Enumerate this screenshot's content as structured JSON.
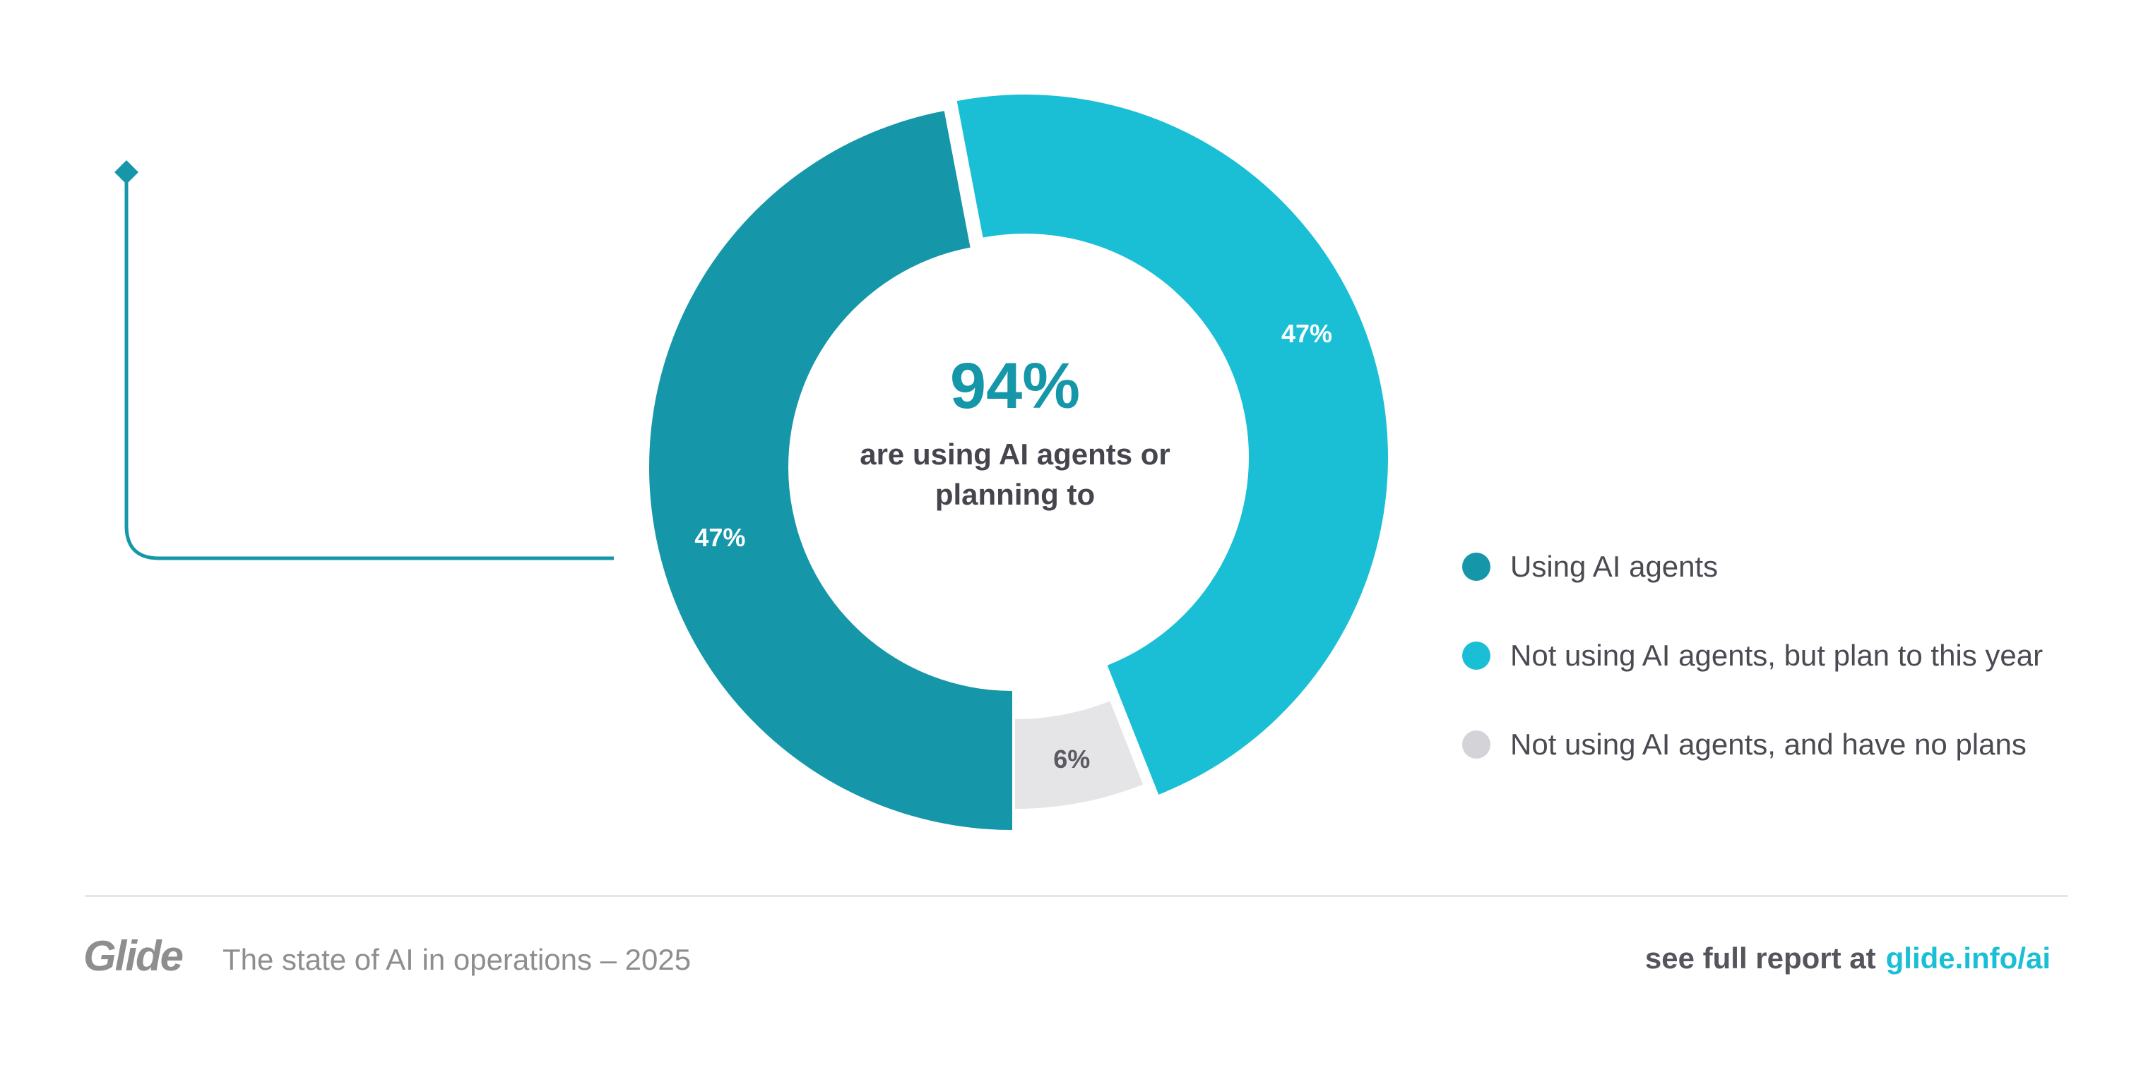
{
  "chart_data": {
    "type": "pie",
    "donut": true,
    "categories": [
      "Using AI agents",
      "Not using AI agents, but plan to this year",
      "Not using AI agents, and have no plans"
    ],
    "values": [
      47,
      47,
      6
    ],
    "data_labels": [
      "47%",
      "47%",
      "6%"
    ],
    "colors": [
      "#1597a9",
      "#1bbfd5",
      "#e5e5e8"
    ],
    "legend_colors": [
      "#1597a9",
      "#1bbfd5",
      "#d4d4d8"
    ],
    "legend_position": "right",
    "center_value": "94%",
    "center_text_line1": "are using AI agents or",
    "center_text_line2": "planning to"
  },
  "footer": {
    "logo": "Glide",
    "subtitle": "The state of AI in operations – 2025",
    "report_prefix": "see full report at",
    "report_link": "glide.info/ai"
  }
}
